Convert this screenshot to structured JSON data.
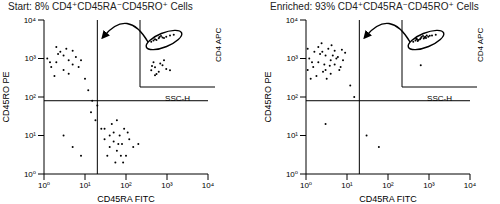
{
  "chart_data": [
    {
      "type": "scatter",
      "title": "Start: 8% CD4⁺CD45RA⁻CD45RO⁺ Cells",
      "x_label": "CD45RA FITC",
      "y_label": "CD45RO PE",
      "log": true,
      "color": "#000000",
      "xlim": [
        1,
        10000
      ],
      "ylim": [
        1,
        10000
      ],
      "xticks": [
        {
          "value": 1,
          "label": "10⁰"
        },
        {
          "value": 10,
          "label": "10¹"
        },
        {
          "value": 100,
          "label": "10²"
        },
        {
          "value": 1000,
          "label": "10³"
        },
        {
          "value": 10000,
          "label": "10⁴"
        }
      ],
      "yticks": [
        {
          "value": 1,
          "label": "10⁰"
        },
        {
          "value": 10,
          "label": "10¹"
        },
        {
          "value": 100,
          "label": "10²"
        },
        {
          "value": 1000,
          "label": "10³"
        },
        {
          "value": 10000,
          "label": "10⁴"
        }
      ],
      "quadrant": {
        "x": 20,
        "y": 80
      },
      "x": [
        2,
        3,
        1.5,
        4,
        2.5,
        5,
        3,
        1.2,
        6,
        2,
        4,
        8,
        3.5,
        1.8,
        7,
        2.2,
        5,
        1.4,
        10,
        12,
        15,
        14,
        18,
        20,
        25,
        30,
        40,
        50,
        60,
        35,
        80,
        45,
        70,
        100,
        55,
        90,
        120,
        65,
        40,
        150,
        30,
        50,
        75,
        110,
        85,
        60,
        200,
        5,
        3,
        8
      ],
      "values": [
        800,
        1200,
        600,
        900,
        1500,
        700,
        500,
        1000,
        1100,
        2000,
        400,
        900,
        1800,
        350,
        600,
        1300,
        1600,
        800,
        300,
        150,
        80,
        40,
        25,
        60,
        15,
        8,
        5,
        12,
        4,
        3,
        6,
        20,
        10,
        3,
        2,
        15,
        8,
        6,
        10,
        5,
        15,
        7,
        3,
        12,
        2,
        25,
        6,
        5,
        10,
        3
      ],
      "inset": {
        "type": "scatter",
        "x_label": "SSC-H",
        "y_label": "CD4 APC",
        "log": "y",
        "tick_labels": false,
        "color": "#000000",
        "xlim": [
          0,
          1000
        ],
        "ylim": [
          1,
          10000
        ],
        "x": [
          150,
          200,
          250,
          300,
          350,
          180,
          280,
          400,
          220,
          320,
          260,
          450,
          150,
          200,
          250,
          300,
          180,
          350,
          220,
          270,
          400,
          320,
          200,
          160
        ],
        "values": [
          500,
          700,
          800,
          900,
          1000,
          600,
          1100,
          1200,
          650,
          850,
          950,
          1300,
          10,
          15,
          8,
          20,
          30,
          12,
          6,
          25,
          10,
          40,
          5,
          18
        ]
      }
    },
    {
      "type": "scatter",
      "title": "Enriched: 93% CD4⁺CD45RA⁻CD45RO⁺ Cells",
      "x_label": "CD45RA FITC",
      "y_label": "CD45RO PE",
      "log": true,
      "color": "#000000",
      "xlim": [
        1,
        10000
      ],
      "ylim": [
        1,
        10000
      ],
      "xticks": [
        {
          "value": 1,
          "label": "10⁰"
        },
        {
          "value": 10,
          "label": "10¹"
        },
        {
          "value": 100,
          "label": "10²"
        },
        {
          "value": 1000,
          "label": "10³"
        },
        {
          "value": 10000,
          "label": "10⁴"
        }
      ],
      "yticks": [
        {
          "value": 1,
          "label": "10⁰"
        },
        {
          "value": 10,
          "label": "10¹"
        },
        {
          "value": 100,
          "label": "10²"
        },
        {
          "value": 1000,
          "label": "10³"
        },
        {
          "value": 10000,
          "label": "10⁴"
        }
      ],
      "quadrant": {
        "x": 20,
        "y": 80
      },
      "x": [
        2,
        3,
        1.5,
        4,
        2.5,
        5,
        3,
        1.2,
        6,
        2,
        4,
        8,
        3.5,
        1.8,
        7,
        2.2,
        5,
        1.4,
        1.1,
        2.8,
        4.5,
        6.5,
        9,
        1.6,
        3.2,
        2.4,
        5.5,
        1.3,
        7.5,
        3.8,
        1.1,
        4.2,
        2.6,
        12,
        15,
        30,
        60,
        3
      ],
      "values": [
        800,
        1200,
        600,
        900,
        1500,
        700,
        500,
        1000,
        1100,
        2000,
        400,
        900,
        1800,
        350,
        600,
        1300,
        1600,
        800,
        500,
        700,
        1200,
        500,
        1400,
        1500,
        300,
        2500,
        1000,
        300,
        1700,
        650,
        1800,
        2200,
        450,
        200,
        100,
        10,
        5,
        20
      ],
      "inset": {
        "type": "scatter",
        "x_label": "SSC-H",
        "y_label": "CD4 APC",
        "log": "y",
        "tick_labels": false,
        "color": "#000000",
        "xlim": [
          0,
          1000
        ],
        "ylim": [
          1,
          10000
        ],
        "x": [
          150,
          200,
          250,
          300,
          350,
          180,
          280,
          400,
          220,
          320,
          260,
          450,
          190,
          240,
          310,
          370,
          210,
          290,
          330,
          250
        ],
        "values": [
          500,
          700,
          800,
          900,
          1000,
          600,
          1100,
          1200,
          650,
          850,
          950,
          1300,
          750,
          700,
          1000,
          1150,
          550,
          780,
          1200,
          20
        ]
      }
    }
  ]
}
